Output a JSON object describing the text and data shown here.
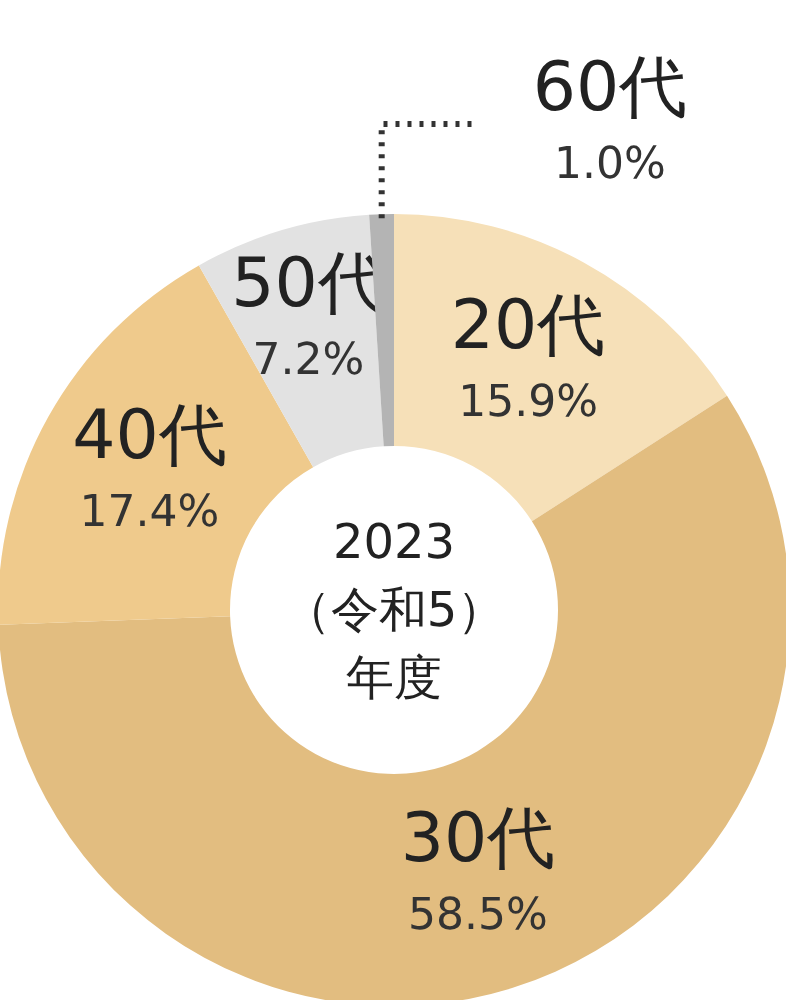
{
  "chart_data": {
    "type": "donut",
    "annotations": [
      "2023",
      "（令和5）",
      "年度"
    ],
    "categories": [
      "20代",
      "30代",
      "40代",
      "50代",
      "60代"
    ],
    "values": [
      15.9,
      58.5,
      17.4,
      7.2,
      1.0
    ],
    "value_labels": [
      "15.9%",
      "58.5%",
      "17.4%",
      "7.2%",
      "1.0%"
    ],
    "colors": [
      "#f6e0b8",
      "#e2bd80",
      "#efca8c",
      "#e2e2e2",
      "#b4b4b4"
    ]
  }
}
